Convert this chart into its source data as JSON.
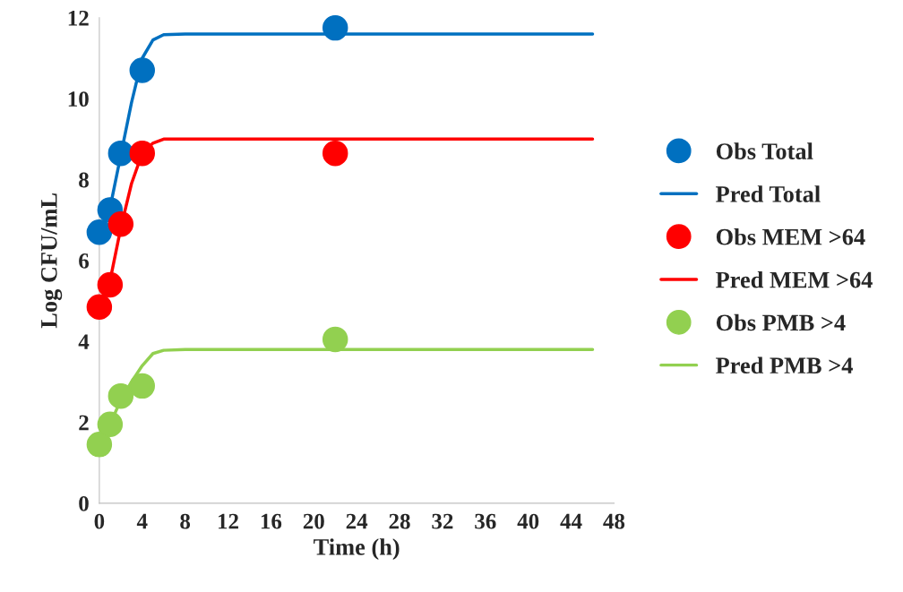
{
  "chart_data": {
    "type": "scatter",
    "xlabel": "Time (h)",
    "ylabel": "Log CFU/mL",
    "xlim": [
      0,
      48
    ],
    "xticks": [
      0,
      4,
      8,
      12,
      16,
      20,
      24,
      28,
      32,
      36,
      40,
      44,
      48
    ],
    "ylim": [
      0,
      12
    ],
    "yticks": [
      0,
      2,
      4,
      6,
      8,
      10,
      12
    ],
    "grid": false,
    "legend": "right",
    "series": [
      {
        "name": "Obs Total",
        "marker": "circle",
        "color": "#0070c0",
        "x": [
          0,
          1,
          2,
          4,
          22
        ],
        "values": [
          6.7,
          7.25,
          8.65,
          10.7,
          11.75
        ]
      },
      {
        "name": "Pred Total",
        "type": "line",
        "marker": "none",
        "color": "#0070c0",
        "x": [
          0,
          1,
          2,
          3,
          4,
          5,
          6,
          8,
          46
        ],
        "values": [
          6.7,
          7.3,
          8.6,
          9.9,
          11.0,
          11.45,
          11.58,
          11.6,
          11.6
        ]
      },
      {
        "name": "Obs MEM >64",
        "marker": "circle",
        "color": "#ff0000",
        "x": [
          0,
          1,
          2,
          4,
          22
        ],
        "values": [
          4.85,
          5.4,
          6.9,
          8.65,
          8.65
        ]
      },
      {
        "name": "Pred MEM >64",
        "type": "line",
        "marker": "none",
        "color": "#ff0000",
        "x": [
          0,
          1,
          2,
          3,
          4,
          5,
          6,
          8,
          46
        ],
        "values": [
          4.9,
          5.5,
          6.8,
          7.9,
          8.65,
          8.9,
          9.0,
          9.0,
          9.0
        ]
      },
      {
        "name": "Obs PMB >4",
        "marker": "circle",
        "color": "#92d050",
        "x": [
          0,
          1,
          2,
          4,
          22
        ],
        "values": [
          1.45,
          1.95,
          2.65,
          2.9,
          4.05
        ]
      },
      {
        "name": "Pred PMB >4",
        "type": "line",
        "marker": "none",
        "color": "#92d050",
        "x": [
          0,
          1,
          2,
          3,
          4,
          5,
          6,
          8,
          46
        ],
        "values": [
          1.45,
          1.95,
          2.55,
          3.0,
          3.4,
          3.7,
          3.78,
          3.8,
          3.8
        ]
      }
    ]
  }
}
